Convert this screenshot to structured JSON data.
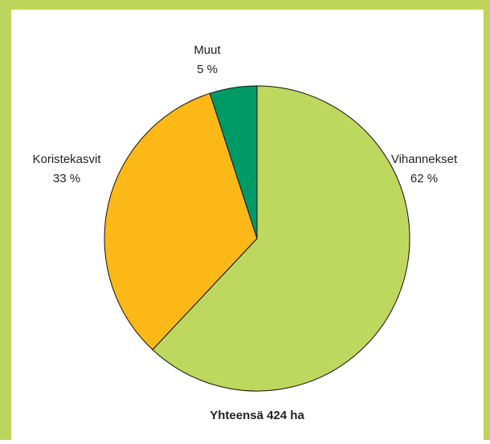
{
  "chart_data": {
    "type": "pie",
    "categories": [
      "Vihannekset",
      "Koristekasvit",
      "Muut"
    ],
    "values": [
      62,
      33,
      5
    ],
    "value_labels": [
      "62 %",
      "33 %",
      "5 %"
    ],
    "colors": [
      "#bed75e",
      "#fbb817",
      "#009a66"
    ],
    "annotation": "Yhteensä 424 ha"
  }
}
